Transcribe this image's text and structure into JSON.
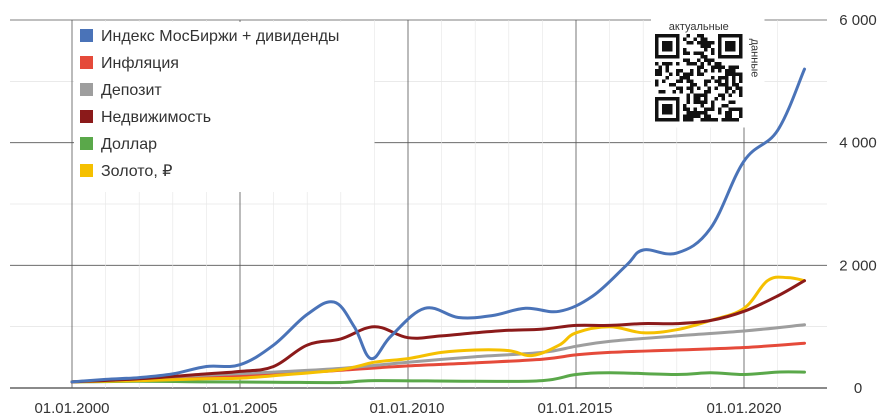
{
  "chart_data": {
    "type": "line",
    "title": "",
    "xlabel": "",
    "ylabel": "",
    "x_ticks": [
      "01.01.2000",
      "01.01.2005",
      "01.01.2010",
      "01.01.2015",
      "01.01.2020"
    ],
    "y_ticks": [
      "0",
      "2 000",
      "4 000",
      "6 000"
    ],
    "xlim": [
      1999.5,
      2021.9
    ],
    "ylim": [
      0,
      6000
    ],
    "grid": true,
    "legend_position": "top-left",
    "qr_caption": "актуальные данные",
    "series": [
      {
        "name": "Индекс МосБиржи + дивиденды",
        "color": "#4a73b8",
        "points": [
          [
            2000,
            100
          ],
          [
            2001,
            140
          ],
          [
            2002,
            170
          ],
          [
            2003,
            230
          ],
          [
            2004,
            350
          ],
          [
            2005,
            380
          ],
          [
            2006,
            700
          ],
          [
            2007,
            1200
          ],
          [
            2007.8,
            1400
          ],
          [
            2008.4,
            1000
          ],
          [
            2008.9,
            480
          ],
          [
            2009.5,
            850
          ],
          [
            2010.5,
            1300
          ],
          [
            2011.5,
            1150
          ],
          [
            2012.5,
            1180
          ],
          [
            2013.5,
            1300
          ],
          [
            2014.5,
            1250
          ],
          [
            2015.5,
            1500
          ],
          [
            2016.5,
            2000
          ],
          [
            2017,
            2250
          ],
          [
            2018,
            2200
          ],
          [
            2019,
            2600
          ],
          [
            2020,
            3700
          ],
          [
            2021,
            4200
          ],
          [
            2021.8,
            5200
          ]
        ]
      },
      {
        "name": "Инфляция",
        "color": "#e54a3a",
        "points": [
          [
            2000,
            100
          ],
          [
            2002,
            140
          ],
          [
            2004,
            180
          ],
          [
            2006,
            220
          ],
          [
            2008,
            290
          ],
          [
            2010,
            360
          ],
          [
            2012,
            410
          ],
          [
            2014,
            470
          ],
          [
            2015,
            540
          ],
          [
            2016,
            580
          ],
          [
            2018,
            620
          ],
          [
            2020,
            660
          ],
          [
            2021.8,
            730
          ]
        ]
      },
      {
        "name": "Депозит",
        "color": "#9e9e9e",
        "points": [
          [
            2000,
            100
          ],
          [
            2002,
            160
          ],
          [
            2004,
            210
          ],
          [
            2006,
            260
          ],
          [
            2008,
            320
          ],
          [
            2010,
            420
          ],
          [
            2012,
            510
          ],
          [
            2014,
            580
          ],
          [
            2015,
            680
          ],
          [
            2016,
            760
          ],
          [
            2018,
            850
          ],
          [
            2020,
            930
          ],
          [
            2021.8,
            1030
          ]
        ]
      },
      {
        "name": "Недвижимость",
        "color": "#8b1a1a",
        "points": [
          [
            2000,
            100
          ],
          [
            2002,
            150
          ],
          [
            2004,
            230
          ],
          [
            2005,
            270
          ],
          [
            2006,
            350
          ],
          [
            2007,
            700
          ],
          [
            2008,
            800
          ],
          [
            2009,
            1000
          ],
          [
            2010,
            820
          ],
          [
            2011,
            850
          ],
          [
            2012,
            900
          ],
          [
            2013,
            940
          ],
          [
            2014,
            960
          ],
          [
            2015,
            1020
          ],
          [
            2016,
            1020
          ],
          [
            2017,
            1050
          ],
          [
            2018,
            1050
          ],
          [
            2019,
            1100
          ],
          [
            2020,
            1250
          ],
          [
            2021,
            1500
          ],
          [
            2021.8,
            1750
          ]
        ]
      },
      {
        "name": "Доллар",
        "color": "#5aa84a",
        "points": [
          [
            2000,
            100
          ],
          [
            2002,
            110
          ],
          [
            2004,
            100
          ],
          [
            2006,
            95
          ],
          [
            2008,
            90
          ],
          [
            2009,
            120
          ],
          [
            2012,
            110
          ],
          [
            2014,
            120
          ],
          [
            2015,
            220
          ],
          [
            2016,
            250
          ],
          [
            2018,
            220
          ],
          [
            2019,
            250
          ],
          [
            2020,
            220
          ],
          [
            2021,
            260
          ],
          [
            2021.8,
            260
          ]
        ]
      },
      {
        "name": "Золото, ₽",
        "color": "#f5c000",
        "points": [
          [
            2000,
            100
          ],
          [
            2002,
            120
          ],
          [
            2004,
            150
          ],
          [
            2005,
            160
          ],
          [
            2006,
            200
          ],
          [
            2008,
            300
          ],
          [
            2009,
            420
          ],
          [
            2010,
            480
          ],
          [
            2011,
            580
          ],
          [
            2012,
            620
          ],
          [
            2013,
            610
          ],
          [
            2013.7,
            530
          ],
          [
            2014.5,
            700
          ],
          [
            2015,
            900
          ],
          [
            2016,
            1000
          ],
          [
            2017,
            900
          ],
          [
            2018,
            950
          ],
          [
            2019,
            1100
          ],
          [
            2020,
            1300
          ],
          [
            2020.7,
            1750
          ],
          [
            2021.3,
            1800
          ],
          [
            2021.8,
            1750
          ]
        ]
      }
    ]
  }
}
